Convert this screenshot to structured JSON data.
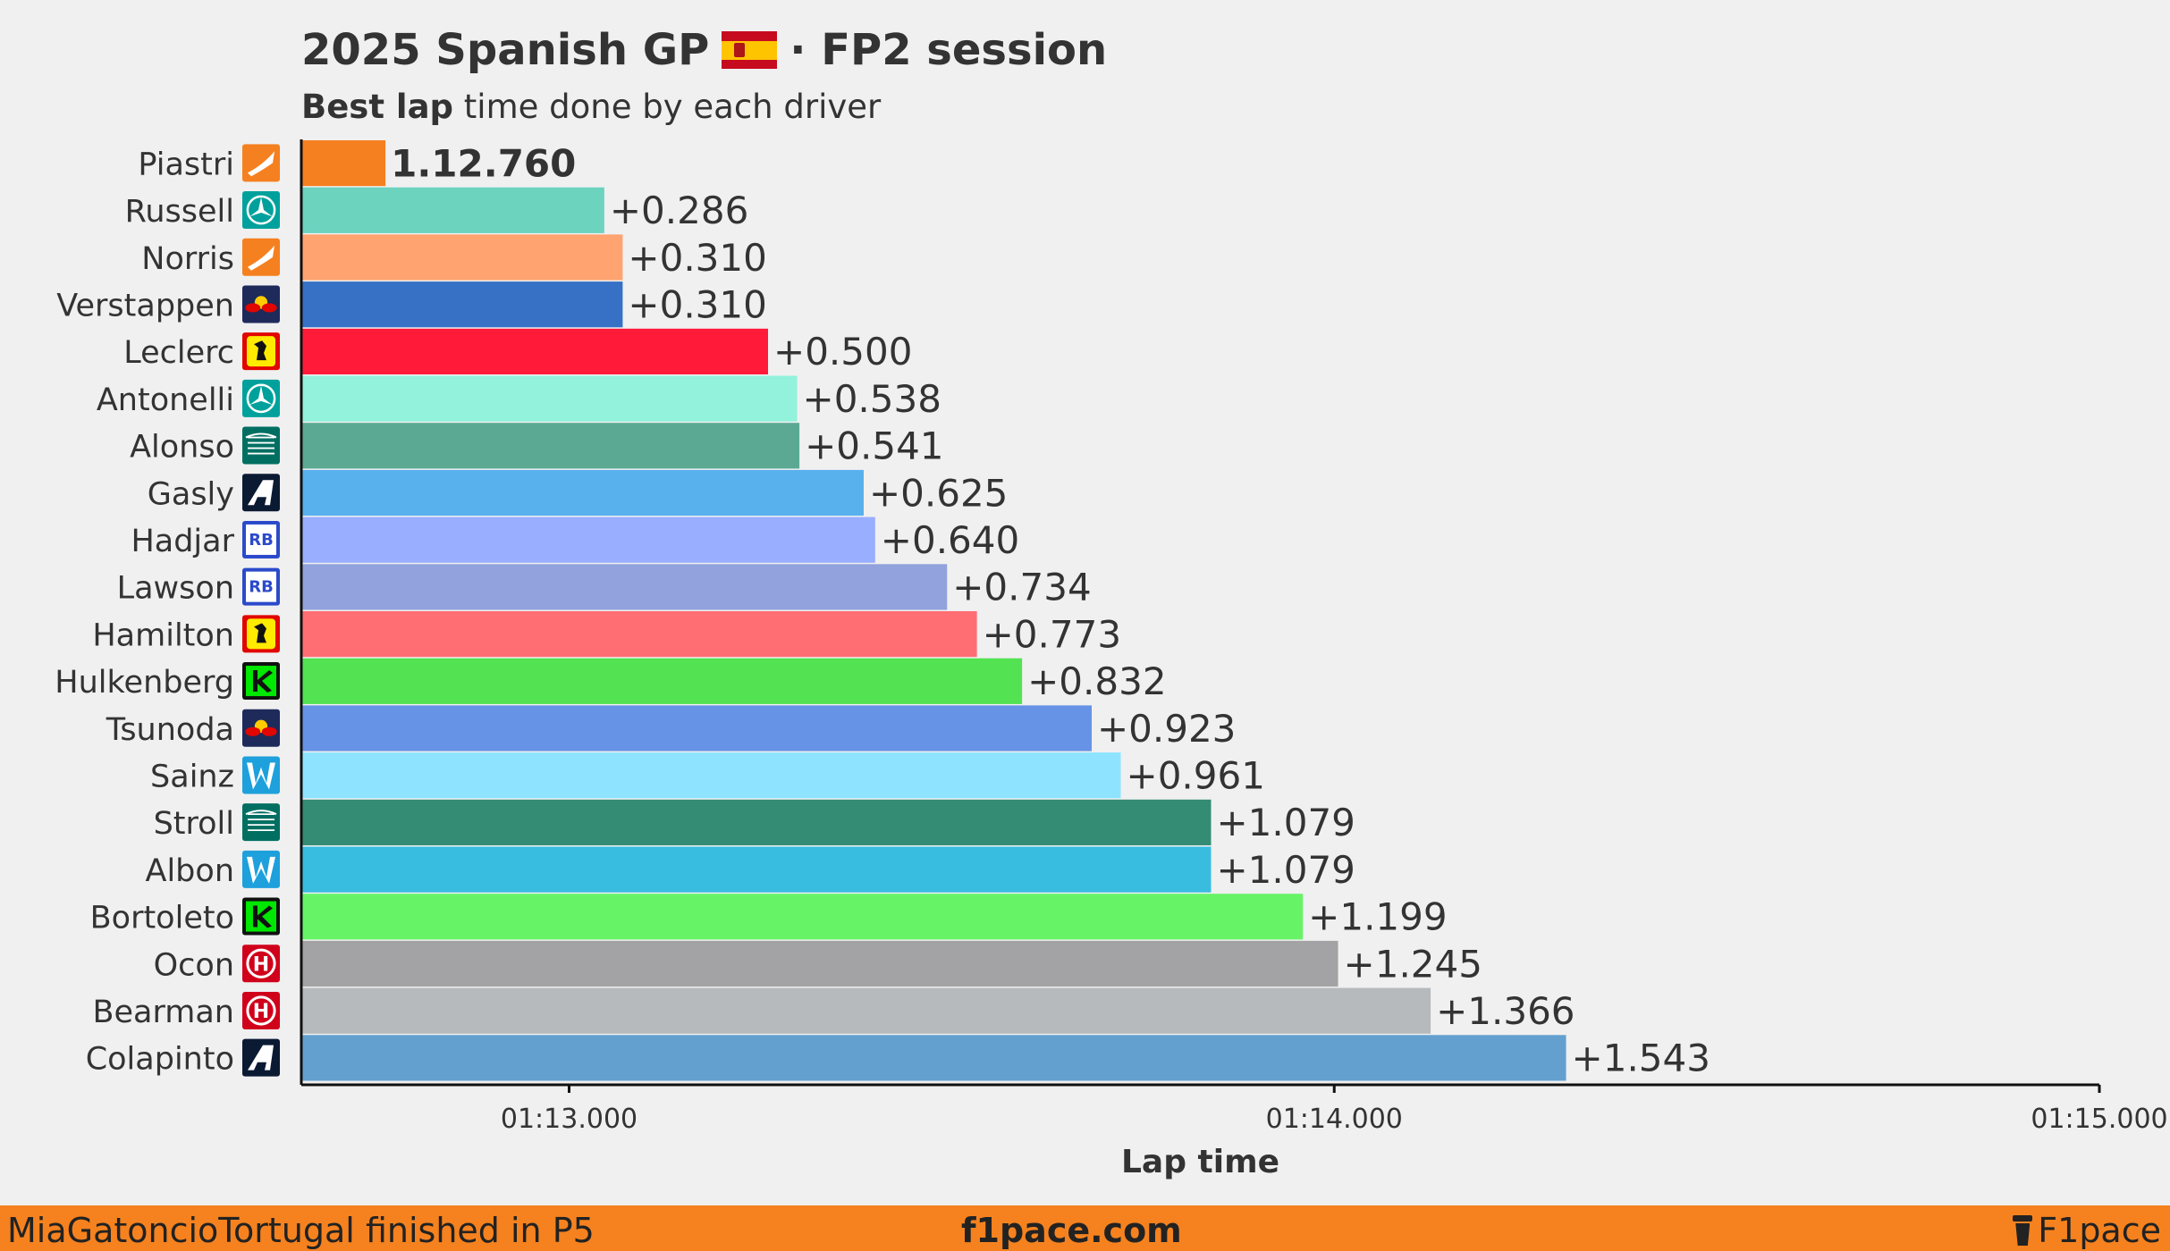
{
  "header": {
    "title_left": "2025 Spanish GP",
    "flag_icon": "spain-flag-icon",
    "title_right": "· FP2 session",
    "subtitle_bold": "Best lap",
    "subtitle_rest": " time done by each driver"
  },
  "chart_data": {
    "type": "bar",
    "orientation": "horizontal",
    "xlabel": "Lap time",
    "xlim": [
      "01:12.650",
      "01:15.000"
    ],
    "x_ticks": [
      "01:13.000",
      "01:14.000",
      "01:15.000"
    ],
    "grid": false,
    "base_lap_time": "1.12.760",
    "categories": [
      "Piastri",
      "Russell",
      "Norris",
      "Verstappen",
      "Leclerc",
      "Antonelli",
      "Alonso",
      "Gasly",
      "Hadjar",
      "Lawson",
      "Hamilton",
      "Hulkenberg",
      "Tsunoda",
      "Sainz",
      "Stroll",
      "Albon",
      "Bortoleto",
      "Ocon",
      "Bearman",
      "Colapinto"
    ],
    "lap_times_s": [
      72.76,
      73.046,
      73.07,
      73.07,
      73.26,
      73.298,
      73.301,
      73.385,
      73.4,
      73.494,
      73.533,
      73.592,
      73.683,
      73.721,
      73.839,
      73.839,
      73.959,
      74.005,
      74.126,
      74.303
    ],
    "labels": [
      "1.12.760",
      "+0.286",
      "+0.310",
      "+0.310",
      "+0.500",
      "+0.538",
      "+0.541",
      "+0.625",
      "+0.640",
      "+0.734",
      "+0.773",
      "+0.832",
      "+0.923",
      "+0.961",
      "+1.079",
      "+1.079",
      "+1.199",
      "+1.245",
      "+1.366",
      "+1.543"
    ],
    "colors": [
      "#f58020",
      "#6cd3bf",
      "#ffa470",
      "#3671c6",
      "#ff1a3a",
      "#92f2dc",
      "#5ba993",
      "#58b0ed",
      "#99aeff",
      "#91a2dc",
      "#ff6e73",
      "#52e252",
      "#6693e6",
      "#8ee3ff",
      "#358c75",
      "#38bde0",
      "#66f466",
      "#a3a3a6",
      "#b6babd",
      "#63a0cf"
    ],
    "team_icons": [
      "mclaren-logo-icon",
      "mercedes-logo-icon",
      "mclaren-logo-icon",
      "red-bull-logo-icon",
      "ferrari-logo-icon",
      "mercedes-logo-icon",
      "aston-martin-logo-icon",
      "alpine-logo-icon",
      "racing-bulls-logo-icon",
      "racing-bulls-logo-icon",
      "ferrari-logo-icon",
      "sauber-logo-icon",
      "red-bull-logo-icon",
      "williams-logo-icon",
      "aston-martin-logo-icon",
      "williams-logo-icon",
      "sauber-logo-icon",
      "haas-logo-icon",
      "haas-logo-icon",
      "alpine-logo-icon"
    ]
  },
  "footer": {
    "left_text": "MiaGatoncioTortugal finished in P5",
    "center_text": "f1pace.com",
    "brand_icon": "coffee-cup-icon",
    "right_text": "F1pace",
    "background": "#f5821f"
  }
}
